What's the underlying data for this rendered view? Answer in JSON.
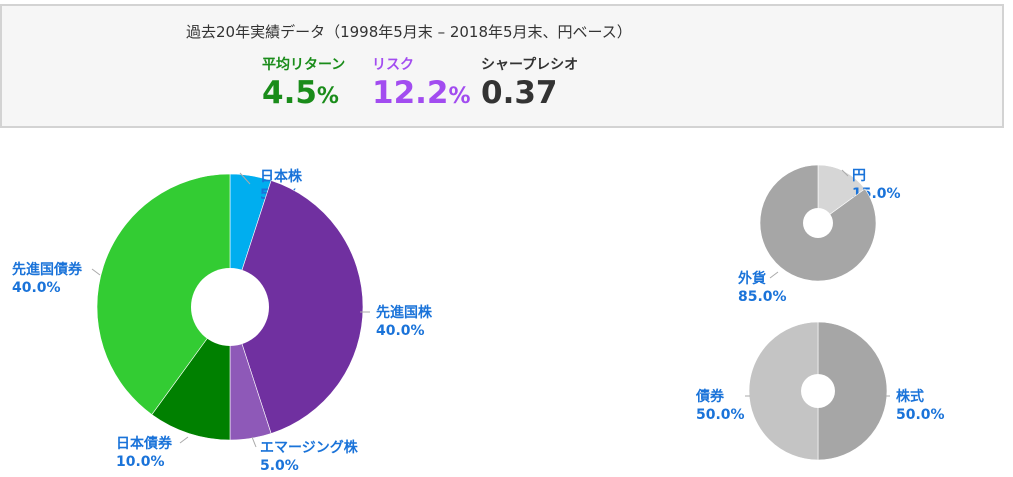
{
  "summary": {
    "title": "過去20年実績データ（1998年5月末 – 2018年5月末、円ベース）",
    "return_label": "平均リターン",
    "return_value": "4.5",
    "return_unit": "%",
    "risk_label": "リスク",
    "risk_value": "12.2",
    "risk_unit": "%",
    "sharpe_label": "シャープレシオ",
    "sharpe_value": "0.37"
  },
  "colors": {
    "return": "#1a8c1a",
    "risk": "#a24cf0",
    "sharpe": "#333333",
    "label": "#1a73d9",
    "leader": "#aaaaaa"
  },
  "chart_data": [
    {
      "type": "pie",
      "variant": "donut",
      "slices": [
        {
          "label": "日本株",
          "value": 5.0,
          "value_text": "5.0%",
          "color": "#00aeef"
        },
        {
          "label": "先進国株",
          "value": 40.0,
          "value_text": "40.0%",
          "color": "#7030a0"
        },
        {
          "label": "エマージング株",
          "value": 5.0,
          "value_text": "5.0%",
          "color": "#8e59b8"
        },
        {
          "label": "日本債券",
          "value": 10.0,
          "value_text": "10.0%",
          "color": "#008000"
        },
        {
          "label": "先進国債券",
          "value": 40.0,
          "value_text": "40.0%",
          "color": "#33cc33"
        }
      ]
    },
    {
      "type": "pie",
      "variant": "donut",
      "slices": [
        {
          "label": "円",
          "value": 15.0,
          "value_text": "15.0%",
          "color": "#d6d6d6"
        },
        {
          "label": "外貨",
          "value": 85.0,
          "value_text": "85.0%",
          "color": "#a6a6a6"
        }
      ]
    },
    {
      "type": "pie",
      "variant": "donut",
      "slices": [
        {
          "label": "株式",
          "value": 50.0,
          "value_text": "50.0%",
          "color": "#a6a6a6"
        },
        {
          "label": "債券",
          "value": 50.0,
          "value_text": "50.0%",
          "color": "#c4c4c4"
        }
      ]
    }
  ]
}
